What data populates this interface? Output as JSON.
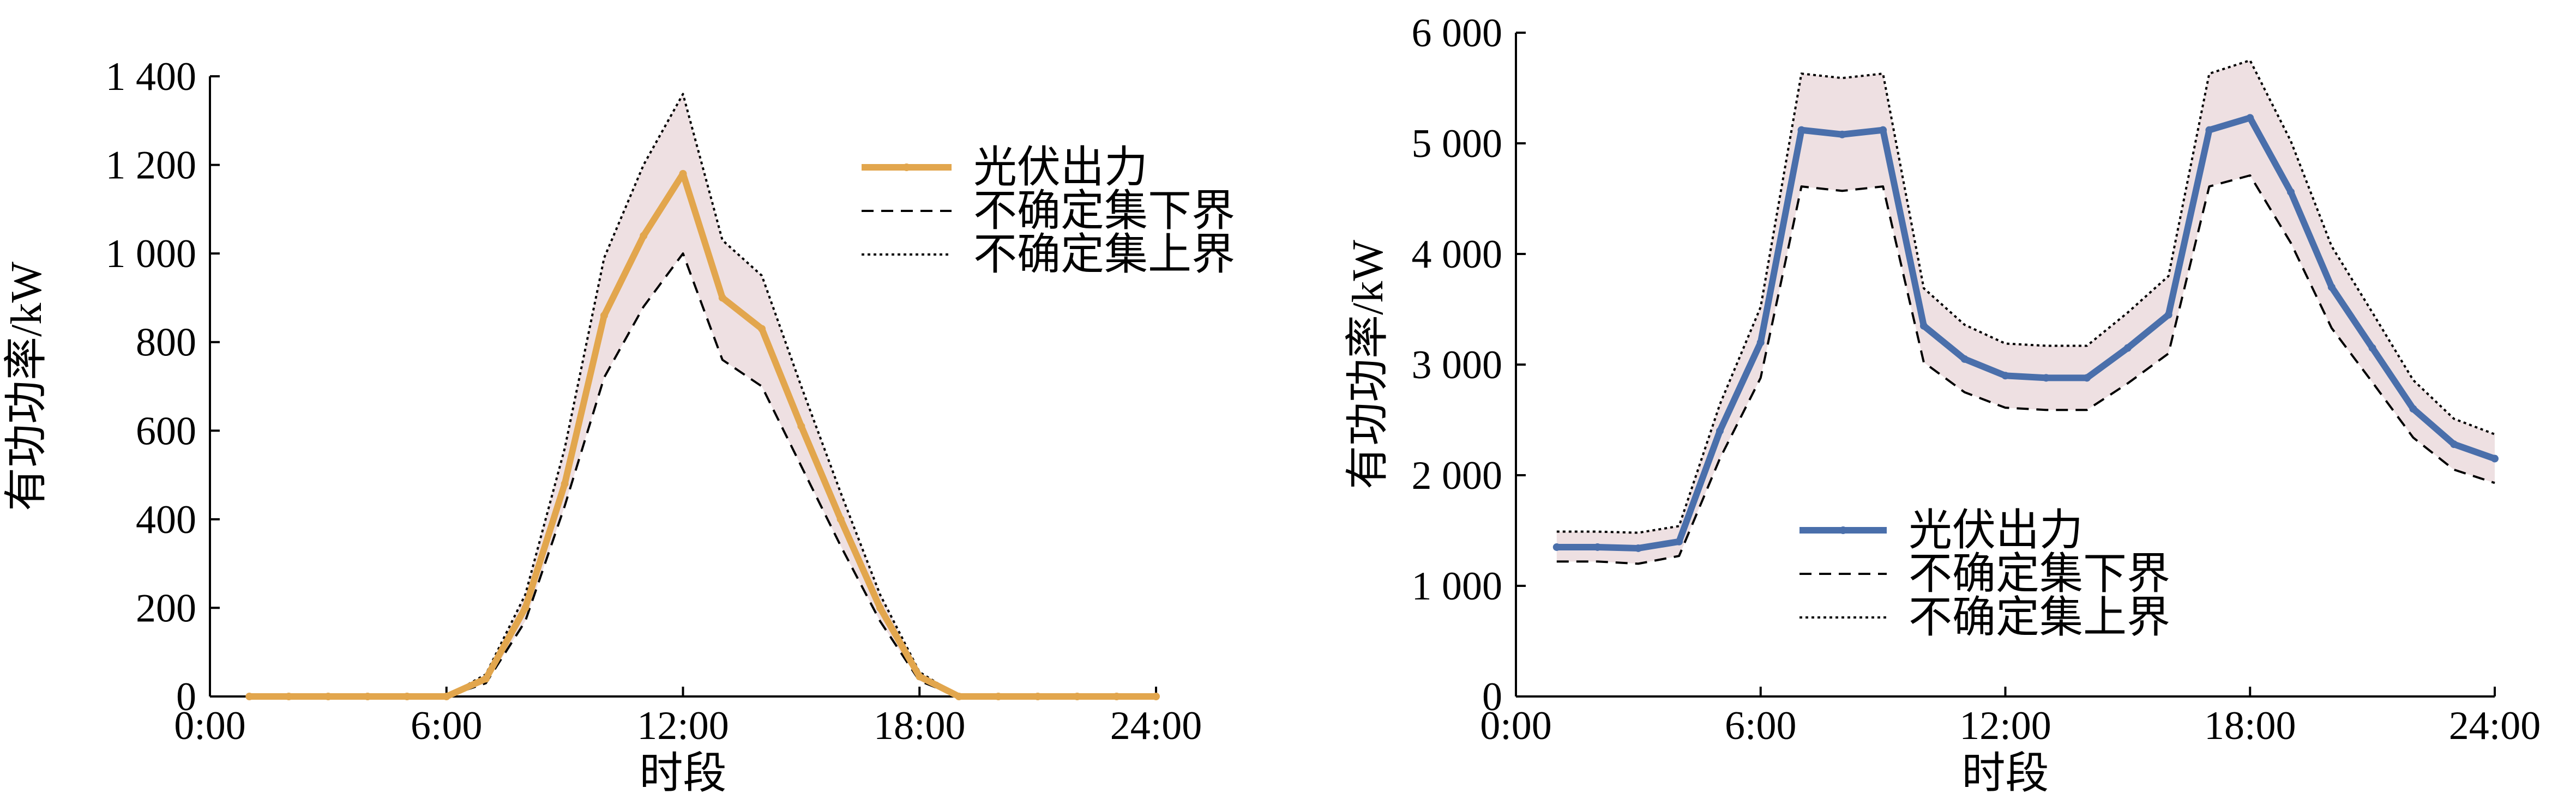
{
  "chart_data": [
    {
      "type": "line",
      "xlabel": "时段",
      "ylabel": "有功功率/kW",
      "xlim": [
        0,
        24
      ],
      "ylim": [
        0,
        1400
      ],
      "x_ticks": [
        "0:00",
        "6:00",
        "12:00",
        "18:00",
        "24:00"
      ],
      "y_ticks": [
        "0",
        "200",
        "400",
        "600",
        "800",
        "1 000",
        "1 200",
        "1 400"
      ],
      "legend_position": "top-right",
      "band_color": "#eee0e2",
      "x": [
        1,
        2,
        3,
        4,
        5,
        6,
        7,
        8,
        9,
        10,
        11,
        12,
        13,
        14,
        15,
        16,
        17,
        18,
        19,
        20,
        21,
        22,
        23,
        24
      ],
      "series": [
        {
          "name": "光伏出力",
          "style": "solid",
          "color": "#e2a64d",
          "values": [
            0,
            0,
            0,
            0,
            0,
            0,
            40,
            200,
            480,
            860,
            1040,
            1180,
            900,
            830,
            610,
            400,
            200,
            45,
            0,
            0,
            0,
            0,
            0,
            0
          ]
        },
        {
          "name": "不确定集下界",
          "style": "dashed",
          "color": "#000000",
          "values": [
            0,
            0,
            0,
            0,
            0,
            0,
            30,
            170,
            430,
            720,
            880,
            1000,
            760,
            700,
            520,
            340,
            170,
            35,
            0,
            0,
            0,
            0,
            0,
            0
          ]
        },
        {
          "name": "不确定集上界",
          "style": "dotted",
          "color": "#000000",
          "values": [
            0,
            0,
            0,
            0,
            0,
            0,
            50,
            230,
            560,
            990,
            1200,
            1360,
            1030,
            950,
            700,
            460,
            230,
            55,
            0,
            0,
            0,
            0,
            0,
            0
          ]
        }
      ]
    },
    {
      "type": "line",
      "xlabel": "时段",
      "ylabel": "有功功率/kW",
      "xlim": [
        0,
        24
      ],
      "ylim": [
        0,
        6000
      ],
      "x_ticks": [
        "0:00",
        "6:00",
        "12:00",
        "18:00",
        "24:00"
      ],
      "y_ticks": [
        "0",
        "1 000",
        "2 000",
        "3 000",
        "4 000",
        "5 000",
        "6 000"
      ],
      "legend_position": "bottom-center",
      "band_color": "#eee0e2",
      "x": [
        1,
        2,
        3,
        4,
        5,
        6,
        7,
        8,
        9,
        10,
        11,
        12,
        13,
        14,
        15,
        16,
        17,
        18,
        19,
        20,
        21,
        22,
        23,
        24
      ],
      "series": [
        {
          "name": "光伏出力",
          "style": "solid",
          "color": "#4a6fab",
          "values": [
            1350,
            1350,
            1340,
            1400,
            2400,
            3200,
            5120,
            5080,
            5120,
            3350,
            3050,
            2900,
            2880,
            2880,
            3150,
            3450,
            5120,
            5230,
            4560,
            3700,
            3150,
            2600,
            2280,
            2150
          ]
        },
        {
          "name": "不确定集下界",
          "style": "dashed",
          "color": "#000000",
          "values": [
            1220,
            1220,
            1200,
            1270,
            2150,
            2880,
            4610,
            4570,
            4610,
            3020,
            2750,
            2610,
            2590,
            2590,
            2830,
            3100,
            4610,
            4710,
            4100,
            3330,
            2840,
            2340,
            2050,
            1930
          ]
        },
        {
          "name": "不确定集上界",
          "style": "dotted",
          "color": "#000000",
          "values": [
            1490,
            1490,
            1480,
            1540,
            2640,
            3520,
            5630,
            5590,
            5630,
            3690,
            3360,
            3190,
            3170,
            3170,
            3470,
            3800,
            5630,
            5750,
            5020,
            4070,
            3470,
            2860,
            2510,
            2370
          ]
        }
      ]
    }
  ]
}
